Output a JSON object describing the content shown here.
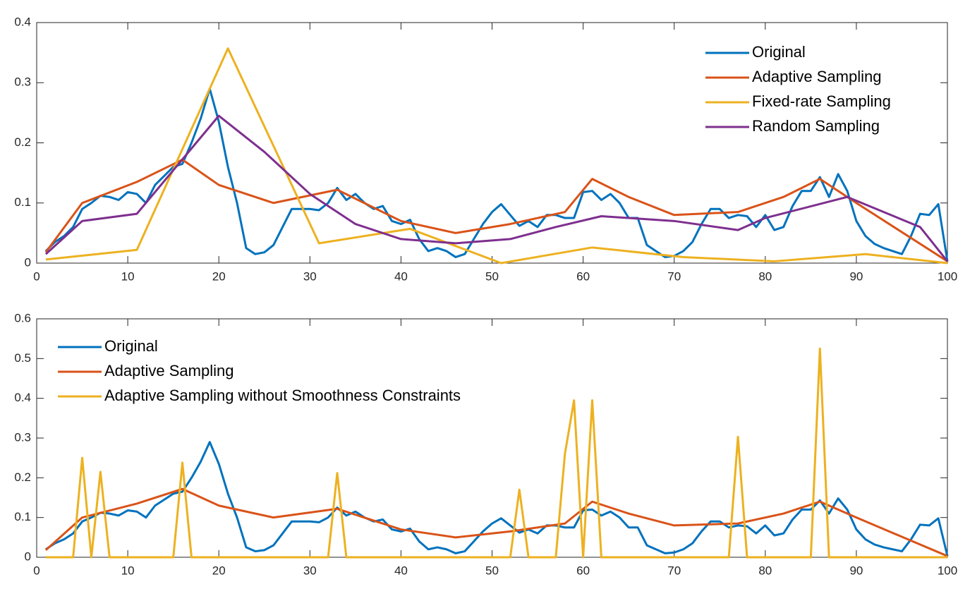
{
  "chart_data": [
    {
      "type": "line",
      "legend": "upper right",
      "xlim": [
        0,
        100
      ],
      "ylim": [
        0,
        0.4
      ],
      "xticks": [
        0,
        10,
        20,
        30,
        40,
        50,
        60,
        70,
        80,
        90,
        100
      ],
      "yticks": [
        0,
        0.1,
        0.2,
        0.3,
        0.4
      ],
      "series": [
        {
          "name": "Original",
          "color": "#0072bd",
          "x": [
            1,
            2,
            3,
            4,
            5,
            6,
            7,
            8,
            9,
            10,
            11,
            12,
            13,
            14,
            15,
            16,
            17,
            18,
            19,
            20,
            21,
            22,
            23,
            24,
            25,
            26,
            27,
            28,
            29,
            30,
            31,
            32,
            33,
            34,
            35,
            36,
            37,
            38,
            39,
            40,
            41,
            42,
            43,
            44,
            45,
            46,
            47,
            48,
            49,
            50,
            51,
            52,
            53,
            54,
            55,
            56,
            57,
            58,
            59,
            60,
            61,
            62,
            63,
            64,
            65,
            66,
            67,
            68,
            69,
            70,
            71,
            72,
            73,
            74,
            75,
            76,
            77,
            78,
            79,
            80,
            81,
            82,
            83,
            84,
            85,
            86,
            87,
            88,
            89,
            90,
            91,
            92,
            93,
            94,
            95,
            96,
            97,
            98,
            99,
            100
          ],
          "values": [
            0.02,
            0.035,
            0.045,
            0.06,
            0.09,
            0.1,
            0.112,
            0.11,
            0.105,
            0.118,
            0.115,
            0.1,
            0.13,
            0.145,
            0.16,
            0.165,
            0.2,
            0.24,
            0.29,
            0.235,
            0.16,
            0.1,
            0.025,
            0.015,
            0.018,
            0.03,
            0.06,
            0.09,
            0.09,
            0.09,
            0.088,
            0.1,
            0.125,
            0.105,
            0.115,
            0.1,
            0.09,
            0.095,
            0.07,
            0.065,
            0.072,
            0.04,
            0.02,
            0.025,
            0.02,
            0.01,
            0.015,
            0.04,
            0.065,
            0.085,
            0.098,
            0.08,
            0.062,
            0.07,
            0.06,
            0.08,
            0.08,
            0.075,
            0.075,
            0.118,
            0.12,
            0.105,
            0.115,
            0.1,
            0.075,
            0.075,
            0.03,
            0.02,
            0.01,
            0.012,
            0.02,
            0.035,
            0.065,
            0.09,
            0.09,
            0.075,
            0.08,
            0.078,
            0.06,
            0.08,
            0.055,
            0.06,
            0.095,
            0.12,
            0.12,
            0.143,
            0.11,
            0.148,
            0.12,
            0.07,
            0.045,
            0.032,
            0.025,
            0.02,
            0.015,
            0.045,
            0.082,
            0.08,
            0.098,
            0.003
          ]
        },
        {
          "name": "Adaptive Sampling",
          "color": "#d95319",
          "x": [
            1,
            5,
            11,
            16,
            20,
            26,
            33,
            40,
            46,
            52,
            58,
            61,
            65,
            70,
            77,
            82,
            86,
            90,
            100
          ],
          "values": [
            0.018,
            0.1,
            0.135,
            0.172,
            0.13,
            0.1,
            0.122,
            0.07,
            0.05,
            0.065,
            0.085,
            0.14,
            0.11,
            0.08,
            0.085,
            0.11,
            0.14,
            0.1,
            0.003
          ]
        },
        {
          "name": "Fixed-rate Sampling",
          "color": "#edb120",
          "x": [
            1,
            11,
            21,
            31,
            41,
            51,
            61,
            71,
            81,
            91,
            100
          ],
          "values": [
            0.006,
            0.022,
            0.357,
            0.033,
            0.057,
            0,
            0.026,
            0.01,
            0.003,
            0.015,
            0
          ]
        },
        {
          "name": "Random Sampling",
          "color": "#7e2f8e",
          "x": [
            1,
            5,
            11,
            20,
            25,
            30,
            35,
            40,
            46,
            52,
            57,
            62,
            70,
            77,
            80,
            89,
            97,
            100
          ],
          "values": [
            0.015,
            0.07,
            0.082,
            0.245,
            0.185,
            0.115,
            0.065,
            0.04,
            0.033,
            0.04,
            0.06,
            0.078,
            0.07,
            0.055,
            0.075,
            0.11,
            0.06,
            0.003
          ]
        }
      ]
    },
    {
      "type": "line",
      "legend": "upper left",
      "xlim": [
        0,
        100
      ],
      "ylim": [
        0,
        0.6
      ],
      "xticks": [
        0,
        10,
        20,
        30,
        40,
        50,
        60,
        70,
        80,
        90,
        100
      ],
      "yticks": [
        0,
        0.1,
        0.2,
        0.3,
        0.4,
        0.5,
        0.6
      ],
      "series": [
        {
          "name": "Original",
          "color": "#0072bd",
          "x": [
            1,
            2,
            3,
            4,
            5,
            6,
            7,
            8,
            9,
            10,
            11,
            12,
            13,
            14,
            15,
            16,
            17,
            18,
            19,
            20,
            21,
            22,
            23,
            24,
            25,
            26,
            27,
            28,
            29,
            30,
            31,
            32,
            33,
            34,
            35,
            36,
            37,
            38,
            39,
            40,
            41,
            42,
            43,
            44,
            45,
            46,
            47,
            48,
            49,
            50,
            51,
            52,
            53,
            54,
            55,
            56,
            57,
            58,
            59,
            60,
            61,
            62,
            63,
            64,
            65,
            66,
            67,
            68,
            69,
            70,
            71,
            72,
            73,
            74,
            75,
            76,
            77,
            78,
            79,
            80,
            81,
            82,
            83,
            84,
            85,
            86,
            87,
            88,
            89,
            90,
            91,
            92,
            93,
            94,
            95,
            96,
            97,
            98,
            99,
            100
          ],
          "values": [
            0.02,
            0.035,
            0.045,
            0.06,
            0.09,
            0.1,
            0.112,
            0.11,
            0.105,
            0.118,
            0.115,
            0.1,
            0.13,
            0.145,
            0.16,
            0.165,
            0.2,
            0.24,
            0.29,
            0.235,
            0.16,
            0.1,
            0.025,
            0.015,
            0.018,
            0.03,
            0.06,
            0.09,
            0.09,
            0.09,
            0.088,
            0.1,
            0.125,
            0.105,
            0.115,
            0.1,
            0.09,
            0.095,
            0.07,
            0.065,
            0.072,
            0.04,
            0.02,
            0.025,
            0.02,
            0.01,
            0.015,
            0.04,
            0.065,
            0.085,
            0.098,
            0.08,
            0.062,
            0.07,
            0.06,
            0.08,
            0.08,
            0.075,
            0.075,
            0.118,
            0.12,
            0.105,
            0.115,
            0.1,
            0.075,
            0.075,
            0.03,
            0.02,
            0.01,
            0.012,
            0.02,
            0.035,
            0.065,
            0.09,
            0.09,
            0.075,
            0.08,
            0.078,
            0.06,
            0.08,
            0.055,
            0.06,
            0.095,
            0.12,
            0.12,
            0.143,
            0.11,
            0.148,
            0.12,
            0.07,
            0.045,
            0.032,
            0.025,
            0.02,
            0.015,
            0.045,
            0.082,
            0.08,
            0.098,
            0.003
          ]
        },
        {
          "name": "Adaptive Sampling",
          "color": "#d95319",
          "x": [
            1,
            5,
            11,
            16,
            20,
            26,
            33,
            40,
            46,
            52,
            58,
            61,
            65,
            70,
            77,
            82,
            86,
            90,
            100
          ],
          "values": [
            0.018,
            0.1,
            0.135,
            0.172,
            0.13,
            0.1,
            0.122,
            0.07,
            0.05,
            0.065,
            0.085,
            0.14,
            0.11,
            0.08,
            0.085,
            0.11,
            0.14,
            0.1,
            0.003
          ]
        },
        {
          "name": "Adaptive Sampling without Smoothness Constraints",
          "color": "#edb120",
          "x": [
            1,
            4,
            5,
            6,
            7,
            8,
            15,
            16,
            17,
            32,
            33,
            34,
            52,
            53,
            54,
            57,
            58,
            59,
            60,
            61,
            62,
            76,
            77,
            78,
            85,
            86,
            87,
            100
          ],
          "values": [
            0,
            0,
            0.25,
            0,
            0.215,
            0,
            0,
            0.238,
            0,
            0,
            0.212,
            0,
            0,
            0.17,
            0,
            0,
            0.26,
            0.395,
            0,
            0.395,
            0,
            0,
            0.303,
            0,
            0,
            0.525,
            0,
            0
          ]
        }
      ]
    }
  ]
}
